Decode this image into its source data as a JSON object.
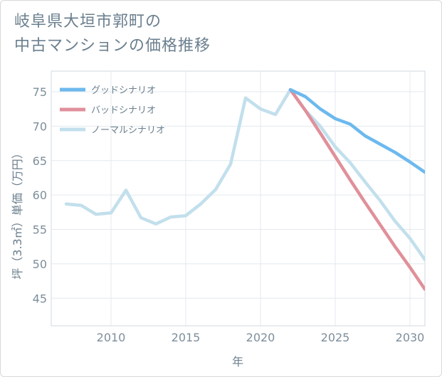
{
  "title": {
    "line1": "岐阜県大垣市郭町の",
    "line2": "中古マンションの価格推移"
  },
  "chart_data": {
    "type": "line",
    "xlabel": "年",
    "ylabel": "坪（3.3㎡）単価（万円）",
    "xlim": [
      2006,
      2031
    ],
    "ylim": [
      41,
      78
    ],
    "x_ticks": [
      2010,
      2015,
      2020,
      2025,
      2030
    ],
    "y_ticks": [
      45,
      50,
      55,
      60,
      65,
      70,
      75
    ],
    "grid": true,
    "legend_position": "top-left",
    "series": [
      {
        "name": "グッドシナリオ",
        "color": "#6cb9ee",
        "x": [
          2022,
          2023,
          2024,
          2025,
          2026,
          2027,
          2028,
          2029,
          2030,
          2031
        ],
        "values": [
          75.3,
          74.3,
          72.5,
          71.1,
          70.3,
          68.6,
          67.4,
          66.2,
          64.8,
          63.3
        ]
      },
      {
        "name": "バッドシナリオ",
        "color": "#e0909a",
        "x": [
          2022,
          2023,
          2024,
          2025,
          2026,
          2027,
          2028,
          2029,
          2030,
          2031
        ],
        "values": [
          75.3,
          72.3,
          69.0,
          65.6,
          62.2,
          58.9,
          55.7,
          52.5,
          49.5,
          46.3
        ]
      },
      {
        "name": "ノーマルシナリオ",
        "color": "#c2dfec",
        "x": [
          2007,
          2008,
          2009,
          2010,
          2011,
          2012,
          2013,
          2014,
          2015,
          2016,
          2017,
          2018,
          2019,
          2020,
          2021,
          2022,
          2023,
          2024,
          2025,
          2026,
          2027,
          2028,
          2029,
          2030,
          2031
        ],
        "values": [
          58.7,
          58.5,
          57.2,
          57.4,
          60.7,
          56.7,
          55.8,
          56.8,
          57.0,
          58.7,
          60.8,
          64.5,
          74.1,
          72.5,
          71.7,
          75.3,
          72.3,
          70.0,
          67.0,
          64.7,
          61.9,
          59.2,
          56.2,
          53.7,
          50.6
        ]
      }
    ]
  }
}
